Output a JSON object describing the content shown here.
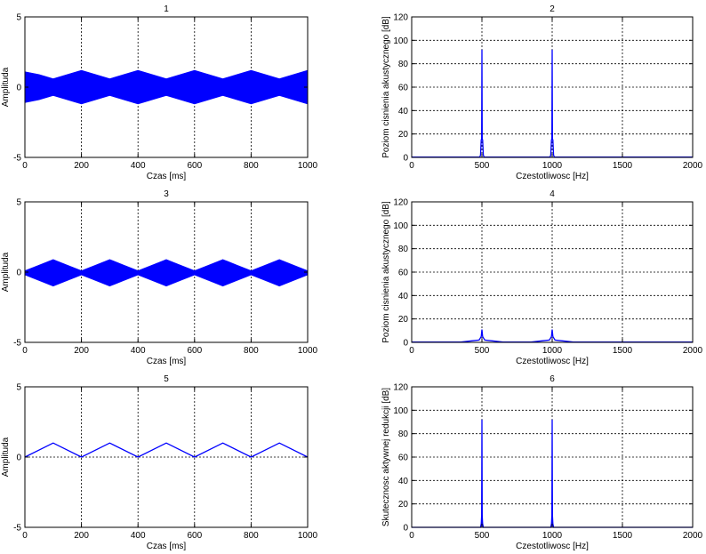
{
  "colors": {
    "signal": "#0000ff",
    "grid": "#000000",
    "frame": "#000000",
    "background": "#ffffff"
  },
  "chart_data": [
    {
      "id": "plot1",
      "title": "1",
      "type": "area",
      "xlabel": "Czas [ms]",
      "ylabel": "Amplituda",
      "xlim": [
        0,
        1000
      ],
      "ylim": [
        -5,
        5
      ],
      "xticks": [
        0,
        200,
        400,
        600,
        800,
        1000
      ],
      "yticks": [
        -5,
        0,
        5
      ],
      "grid": true,
      "series": [
        {
          "x": [
            0,
            50,
            100,
            150,
            200,
            250,
            300,
            350,
            400,
            450,
            500,
            550,
            600,
            650,
            700,
            750,
            800,
            850,
            900,
            950,
            1000
          ],
          "upper": [
            1.1,
            0.9,
            0.6,
            0.9,
            1.2,
            0.9,
            0.6,
            0.9,
            1.2,
            0.9,
            0.6,
            0.9,
            1.2,
            0.9,
            0.6,
            0.9,
            1.2,
            0.9,
            0.6,
            0.9,
            1.2
          ],
          "lower": [
            -1.1,
            -0.9,
            -0.6,
            -0.9,
            -1.2,
            -0.9,
            -0.6,
            -0.9,
            -1.2,
            -0.9,
            -0.6,
            -0.9,
            -1.2,
            -0.9,
            -0.6,
            -0.9,
            -1.2,
            -0.9,
            -0.6,
            -0.9,
            -1.2
          ]
        }
      ]
    },
    {
      "id": "plot2",
      "title": "2",
      "type": "line",
      "xlabel": "Czestotliwosc [Hz]",
      "ylabel": "Poziom cisnienia akustycznego [dB]",
      "xlim": [
        0,
        2000
      ],
      "ylim": [
        0,
        120
      ],
      "xticks": [
        0,
        500,
        1000,
        1500,
        2000
      ],
      "yticks": [
        0,
        20,
        40,
        60,
        80,
        100,
        120
      ],
      "grid": true,
      "series": [
        {
          "x": [
            0,
            485,
            490,
            495,
            498,
            500,
            502,
            505,
            510,
            515,
            985,
            990,
            995,
            998,
            1000,
            1002,
            1005,
            1010,
            1015,
            2000
          ],
          "y": [
            0.3,
            0.3,
            2,
            15,
            15,
            92,
            15,
            15,
            2,
            0.3,
            0.3,
            2,
            15,
            15,
            92,
            15,
            15,
            2,
            0.3,
            0.3
          ]
        }
      ]
    },
    {
      "id": "plot3",
      "title": "3",
      "type": "area",
      "xlabel": "Czas [ms]",
      "ylabel": "Amplituda",
      "xlim": [
        0,
        1000
      ],
      "ylim": [
        -5,
        5
      ],
      "xticks": [
        0,
        200,
        400,
        600,
        800,
        1000
      ],
      "yticks": [
        -5,
        0,
        5
      ],
      "grid": true,
      "series": [
        {
          "x": [
            0,
            50,
            100,
            150,
            200,
            250,
            300,
            350,
            400,
            450,
            500,
            550,
            600,
            650,
            700,
            750,
            800,
            850,
            900,
            950,
            1000
          ],
          "upper": [
            0.1,
            0.5,
            0.9,
            0.5,
            0.1,
            0.5,
            0.9,
            0.5,
            0.1,
            0.5,
            0.9,
            0.5,
            0.1,
            0.5,
            0.9,
            0.5,
            0.1,
            0.5,
            0.9,
            0.5,
            0.1
          ],
          "lower": [
            -0.2,
            -0.6,
            -1.0,
            -0.6,
            -0.2,
            -0.6,
            -1.0,
            -0.6,
            -0.2,
            -0.6,
            -1.0,
            -0.6,
            -0.2,
            -0.6,
            -1.0,
            -0.6,
            -0.2,
            -0.6,
            -1.0,
            -0.6,
            -0.2
          ]
        }
      ]
    },
    {
      "id": "plot4",
      "title": "4",
      "type": "line",
      "xlabel": "Czestotliwosc [Hz]",
      "ylabel": "Poziom cisnienia akustycznego [dB]",
      "xlim": [
        0,
        2000
      ],
      "ylim": [
        0,
        120
      ],
      "xticks": [
        0,
        500,
        1000,
        1500,
        2000
      ],
      "yticks": [
        0,
        20,
        40,
        60,
        80,
        100,
        120
      ],
      "grid": true,
      "series": [
        {
          "x": [
            0,
            350,
            420,
            480,
            495,
            500,
            505,
            520,
            580,
            650,
            850,
            920,
            980,
            995,
            1000,
            1005,
            1020,
            1080,
            1150,
            2000
          ],
          "y": [
            0.3,
            0.3,
            1.2,
            2,
            5,
            11,
            5,
            2,
            1.2,
            0.3,
            0.3,
            1.2,
            2,
            5,
            11,
            5,
            2,
            1.2,
            0.3,
            0.3
          ]
        }
      ]
    },
    {
      "id": "plot5",
      "title": "5",
      "type": "line",
      "xlabel": "Czas [ms]",
      "ylabel": "Amplituda",
      "xlim": [
        0,
        1000
      ],
      "ylim": [
        -5,
        5
      ],
      "xticks": [
        0,
        200,
        400,
        600,
        800,
        1000
      ],
      "yticks": [
        -5,
        0,
        5
      ],
      "grid": true,
      "series": [
        {
          "x": [
            0,
            100,
            200,
            300,
            400,
            500,
            600,
            700,
            800,
            900,
            1000
          ],
          "y": [
            0,
            1,
            0,
            1,
            0,
            1,
            0,
            1,
            0,
            1,
            0
          ]
        }
      ]
    },
    {
      "id": "plot6",
      "title": "6",
      "type": "line",
      "xlabel": "Czestotliwosc [Hz]",
      "ylabel": "Skutecznosc aktywnej redukcji [dB]",
      "xlim": [
        0,
        2000
      ],
      "ylim": [
        0,
        120
      ],
      "xticks": [
        0,
        500,
        1000,
        1500,
        2000
      ],
      "yticks": [
        0,
        20,
        40,
        60,
        80,
        100,
        120
      ],
      "grid": true,
      "series": [
        {
          "x": [
            0,
            490,
            495,
            498,
            500,
            502,
            505,
            510,
            990,
            995,
            998,
            1000,
            1002,
            1005,
            1010,
            2000
          ],
          "y": [
            0,
            0,
            3,
            10,
            92,
            10,
            3,
            0,
            0,
            3,
            10,
            92,
            10,
            3,
            0,
            0
          ]
        }
      ]
    }
  ]
}
